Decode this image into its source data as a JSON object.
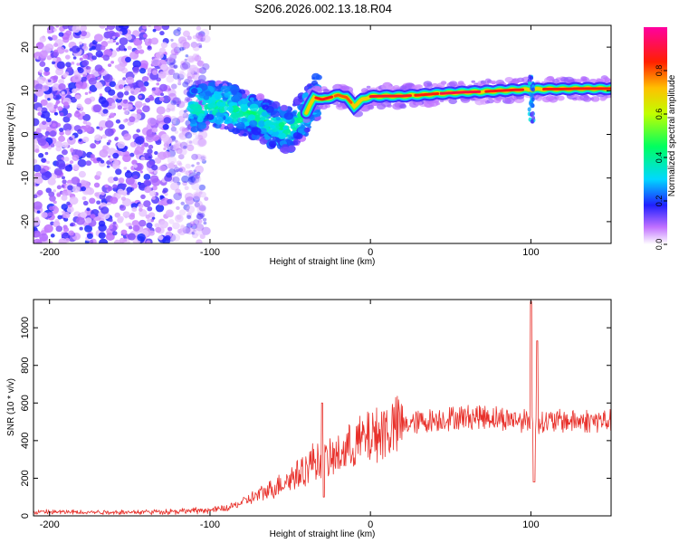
{
  "title": "S206.2026.002.13.18.R04",
  "chart_data": [
    {
      "type": "heatmap",
      "xlabel": "Height of straight line (km)",
      "ylabel": "Frequency (Hz)",
      "xlim": [
        -210,
        150
      ],
      "ylim": [
        -25,
        25
      ],
      "xticks": [
        -200,
        -100,
        0,
        100
      ],
      "yticks": [
        -20,
        -10,
        0,
        10,
        20
      ],
      "colorbar": {
        "label": "Normalized spectral amplitude",
        "range": [
          0,
          1
        ],
        "ticks": [
          0.0,
          0.2,
          0.4,
          0.6,
          0.8
        ],
        "tick_labels": [
          "0.0",
          "0.2",
          "0.4",
          "0.6",
          "0.8"
        ],
        "colormap": "white-purple-blue-cyan-green-yellow-red-magenta"
      },
      "ridge": {
        "x": [
          -110,
          -100,
          -90,
          -80,
          -70,
          -60,
          -50,
          -40,
          -35,
          -30,
          -20,
          -15,
          -10,
          -5,
          0,
          10,
          20,
          30,
          40,
          50,
          60,
          70,
          80,
          90,
          100,
          110,
          120,
          130,
          140,
          150
        ],
        "y": [
          6,
          7,
          6.5,
          5,
          4,
          2,
          1,
          5,
          8.5,
          8,
          9,
          8.5,
          6.5,
          8,
          8.7,
          8.8,
          8.8,
          9,
          9.3,
          9.5,
          9.7,
          9.8,
          10,
          10.2,
          10.3,
          10.4,
          10.4,
          10.5,
          10.5,
          10.5
        ]
      },
      "noise_region": {
        "x_from": -210,
        "x_to": -110
      }
    },
    {
      "type": "line",
      "xlabel": "Height of straight line (km)",
      "ylabel": "SNR (10 * v/v)",
      "xlim": [
        -210,
        150
      ],
      "ylim": [
        0,
        1150
      ],
      "xticks": [
        -200,
        -100,
        0,
        100
      ],
      "yticks": [
        0,
        200,
        400,
        600,
        800,
        1000
      ],
      "series": [
        {
          "color": "#e8302a",
          "envelope": {
            "x": [
              -210,
              -150,
              -130,
              -100,
              -90,
              -80,
              -70,
              -60,
              -50,
              -40,
              -35,
              -30,
              -20,
              -10,
              0,
              10,
              20,
              30,
              40,
              50,
              60,
              70,
              80,
              90,
              95,
              100,
              105,
              110,
              120,
              130,
              140,
              150
            ],
            "y": [
              20,
              20,
              22,
              30,
              40,
              70,
              110,
              150,
              200,
              250,
              300,
              280,
              320,
              380,
              420,
              460,
              480,
              500,
              510,
              520,
              525,
              530,
              520,
              510,
              510,
              500,
              500,
              500,
              505,
              505,
              505,
              505
            ]
          },
          "spikes": [
            {
              "x": -30,
              "y": 600
            },
            {
              "x": -29,
              "y": 100
            },
            {
              "x": 100,
              "y": 1140
            },
            {
              "x": 102,
              "y": 180
            },
            {
              "x": 104,
              "y": 930
            }
          ]
        }
      ]
    }
  ]
}
